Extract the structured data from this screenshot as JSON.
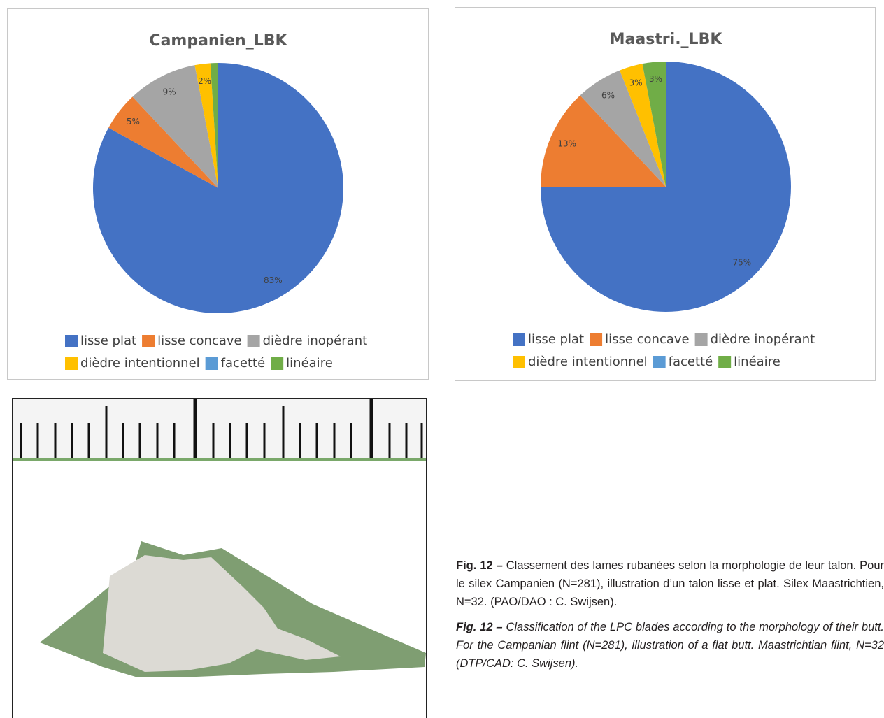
{
  "chart_data": [
    {
      "type": "pie",
      "title": "Campanien_LBK",
      "categories": [
        "lisse plat",
        "lisse concave",
        "dièdre inopérant",
        "dièdre intentionnel",
        "facetté",
        "linéaire"
      ],
      "values": [
        83,
        5,
        9,
        2,
        0,
        1
      ],
      "value_labels": [
        "83%",
        "5%",
        "9%",
        "2%",
        null,
        null
      ],
      "colors": [
        "#4472c4",
        "#ed7d31",
        "#a5a5a5",
        "#ffc000",
        "#5b9bd5",
        "#70ad47"
      ],
      "legend": "bottom"
    },
    {
      "type": "pie",
      "title": "Maastri._LBK",
      "categories": [
        "lisse plat",
        "lisse concave",
        "dièdre inopérant",
        "dièdre intentionnel",
        "facetté",
        "linéaire"
      ],
      "values": [
        75,
        13,
        6,
        3,
        0,
        3
      ],
      "value_labels": [
        "75%",
        "13%",
        "6%",
        "3%",
        null,
        "3%"
      ],
      "colors": [
        "#4472c4",
        "#ed7d31",
        "#a5a5a5",
        "#ffc000",
        "#5b9bd5",
        "#70ad47"
      ],
      "legend": "bottom"
    }
  ],
  "caption": {
    "fr_label": "Fig. 12 –",
    "fr_text": "Classement des lames rubanées selon la morphologie de leur talon. Pour le silex Campanien (N=281), illustration d’un talon lisse et plat. Silex Maastrichtien, N=32. (PAO/DAO : C. Swijsen).",
    "en_label": "Fig. 12 –",
    "en_text": "Classification of the LPC blades according to the morphology of their butt. For the Campanian flint (N=281), illustration of a flat butt. Maastrichtian flint, N=32 (DTP/CAD: C. Swijsen)."
  }
}
